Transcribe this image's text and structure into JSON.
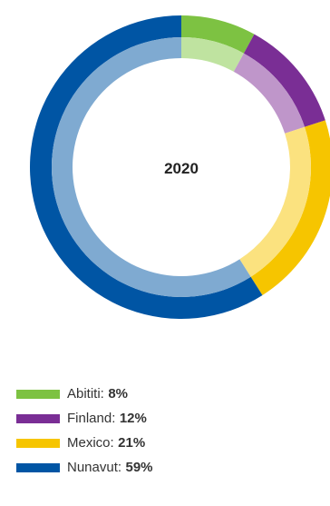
{
  "chart_data": {
    "type": "pie",
    "title": "2020",
    "categories": [
      "Abititi",
      "Finland",
      "Mexico",
      "Nunavut"
    ],
    "values": [
      8,
      12,
      21,
      59
    ],
    "value_labels": [
      "8%",
      "12%",
      "21%",
      "59%"
    ],
    "colors": [
      "#7dc242",
      "#7a2e95",
      "#f6c500",
      "#0055a4"
    ],
    "inner_colors": [
      "#bfe3a0",
      "#bf96ca",
      "#fbe27f",
      "#7faad1"
    ],
    "legend_position": "bottom-left"
  },
  "legend": {
    "items": [
      {
        "label": "Abititi:",
        "value": "8%"
      },
      {
        "label": "Finland:",
        "value": "12%"
      },
      {
        "label": "Mexico:",
        "value": "21%"
      },
      {
        "label": "Nunavut:",
        "value": "59%"
      }
    ]
  }
}
